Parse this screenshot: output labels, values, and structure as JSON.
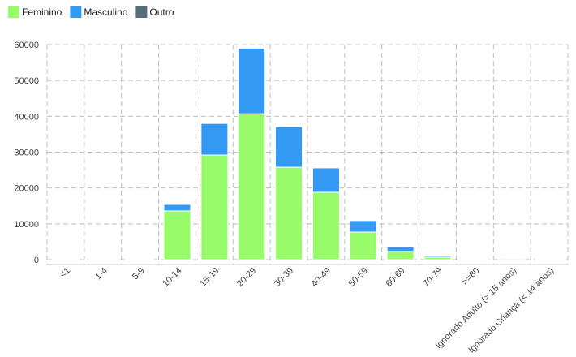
{
  "chart_data": {
    "type": "stacked-bar",
    "categories": [
      "<1",
      "1-4",
      "5-9",
      "10-14",
      "15-19",
      "20-29",
      "30-39",
      "40-49",
      "50-59",
      "60-69",
      "70-79",
      ">=80",
      "Ignorado Adulto (> 15 anos)",
      "Ignorado Criança (< 14 anos)"
    ],
    "series": [
      {
        "name": "Feminino",
        "color": "#98fb6a",
        "values": [
          100,
          50,
          200,
          13600,
          29200,
          40700,
          25800,
          18800,
          7700,
          2300,
          700,
          200,
          300,
          100
        ]
      },
      {
        "name": "Masculino",
        "color": "#3399f3",
        "values": [
          50,
          30,
          100,
          1800,
          8800,
          18300,
          11300,
          6800,
          3200,
          1300,
          400,
          100,
          100,
          50
        ]
      },
      {
        "name": "Outro",
        "color": "#546e7a",
        "values": [
          0,
          0,
          0,
          0,
          0,
          0,
          0,
          0,
          0,
          0,
          0,
          0,
          0,
          0
        ]
      }
    ],
    "ylim": [
      0,
      60000
    ],
    "yticks": [
      0,
      10000,
      20000,
      30000,
      40000,
      50000,
      60000
    ],
    "grid": true
  }
}
